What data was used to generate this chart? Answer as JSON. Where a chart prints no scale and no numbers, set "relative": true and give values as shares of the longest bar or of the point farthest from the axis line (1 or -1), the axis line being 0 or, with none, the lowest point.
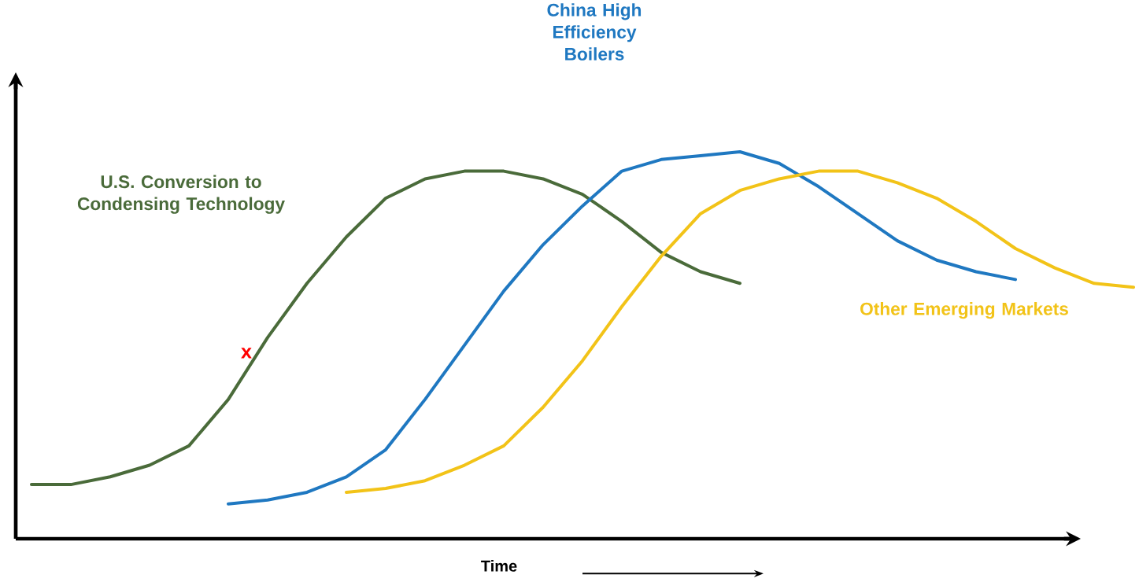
{
  "chart_data": {
    "type": "line",
    "relative": true,
    "xlabel": "Time",
    "categories": [
      null,
      null,
      null,
      null,
      null,
      null,
      null,
      null,
      null,
      null,
      null,
      null,
      null,
      null,
      null,
      null,
      null,
      null,
      null,
      null,
      null,
      null,
      null,
      null,
      null,
      null,
      null,
      null,
      null
    ],
    "series": [
      {
        "name": "U.S. Conversion to Condensing Technology",
        "color": "#4a6b3a",
        "values": [
          0.14,
          0.14,
          0.16,
          0.19,
          0.24,
          0.36,
          0.52,
          0.66,
          0.78,
          0.88,
          0.93,
          0.95,
          0.95,
          0.93,
          0.89,
          0.82,
          0.74,
          0.69,
          0.66,
          null,
          null,
          null,
          null,
          null,
          null,
          null,
          null,
          null,
          null
        ]
      },
      {
        "name": "China High Efficiency Boilers",
        "color": "#1f78c1",
        "values": [
          null,
          null,
          null,
          null,
          null,
          0.09,
          0.1,
          0.12,
          0.16,
          0.23,
          0.36,
          0.5,
          0.64,
          0.76,
          0.86,
          0.95,
          0.98,
          0.99,
          1.0,
          0.97,
          0.91,
          0.84,
          0.77,
          0.72,
          0.69,
          0.67,
          null,
          null,
          null
        ]
      },
      {
        "name": "Other Emerging Markets",
        "color": "#f2c318",
        "values": [
          null,
          null,
          null,
          null,
          null,
          null,
          null,
          null,
          0.12,
          0.13,
          0.15,
          0.19,
          0.24,
          0.34,
          0.46,
          0.6,
          0.73,
          0.84,
          0.9,
          0.93,
          0.95,
          0.95,
          0.92,
          0.88,
          0.82,
          0.75,
          0.7,
          0.66,
          0.65
        ]
      }
    ],
    "annotations": [
      "x"
    ],
    "line_style": "solid",
    "marker": "none"
  }
}
